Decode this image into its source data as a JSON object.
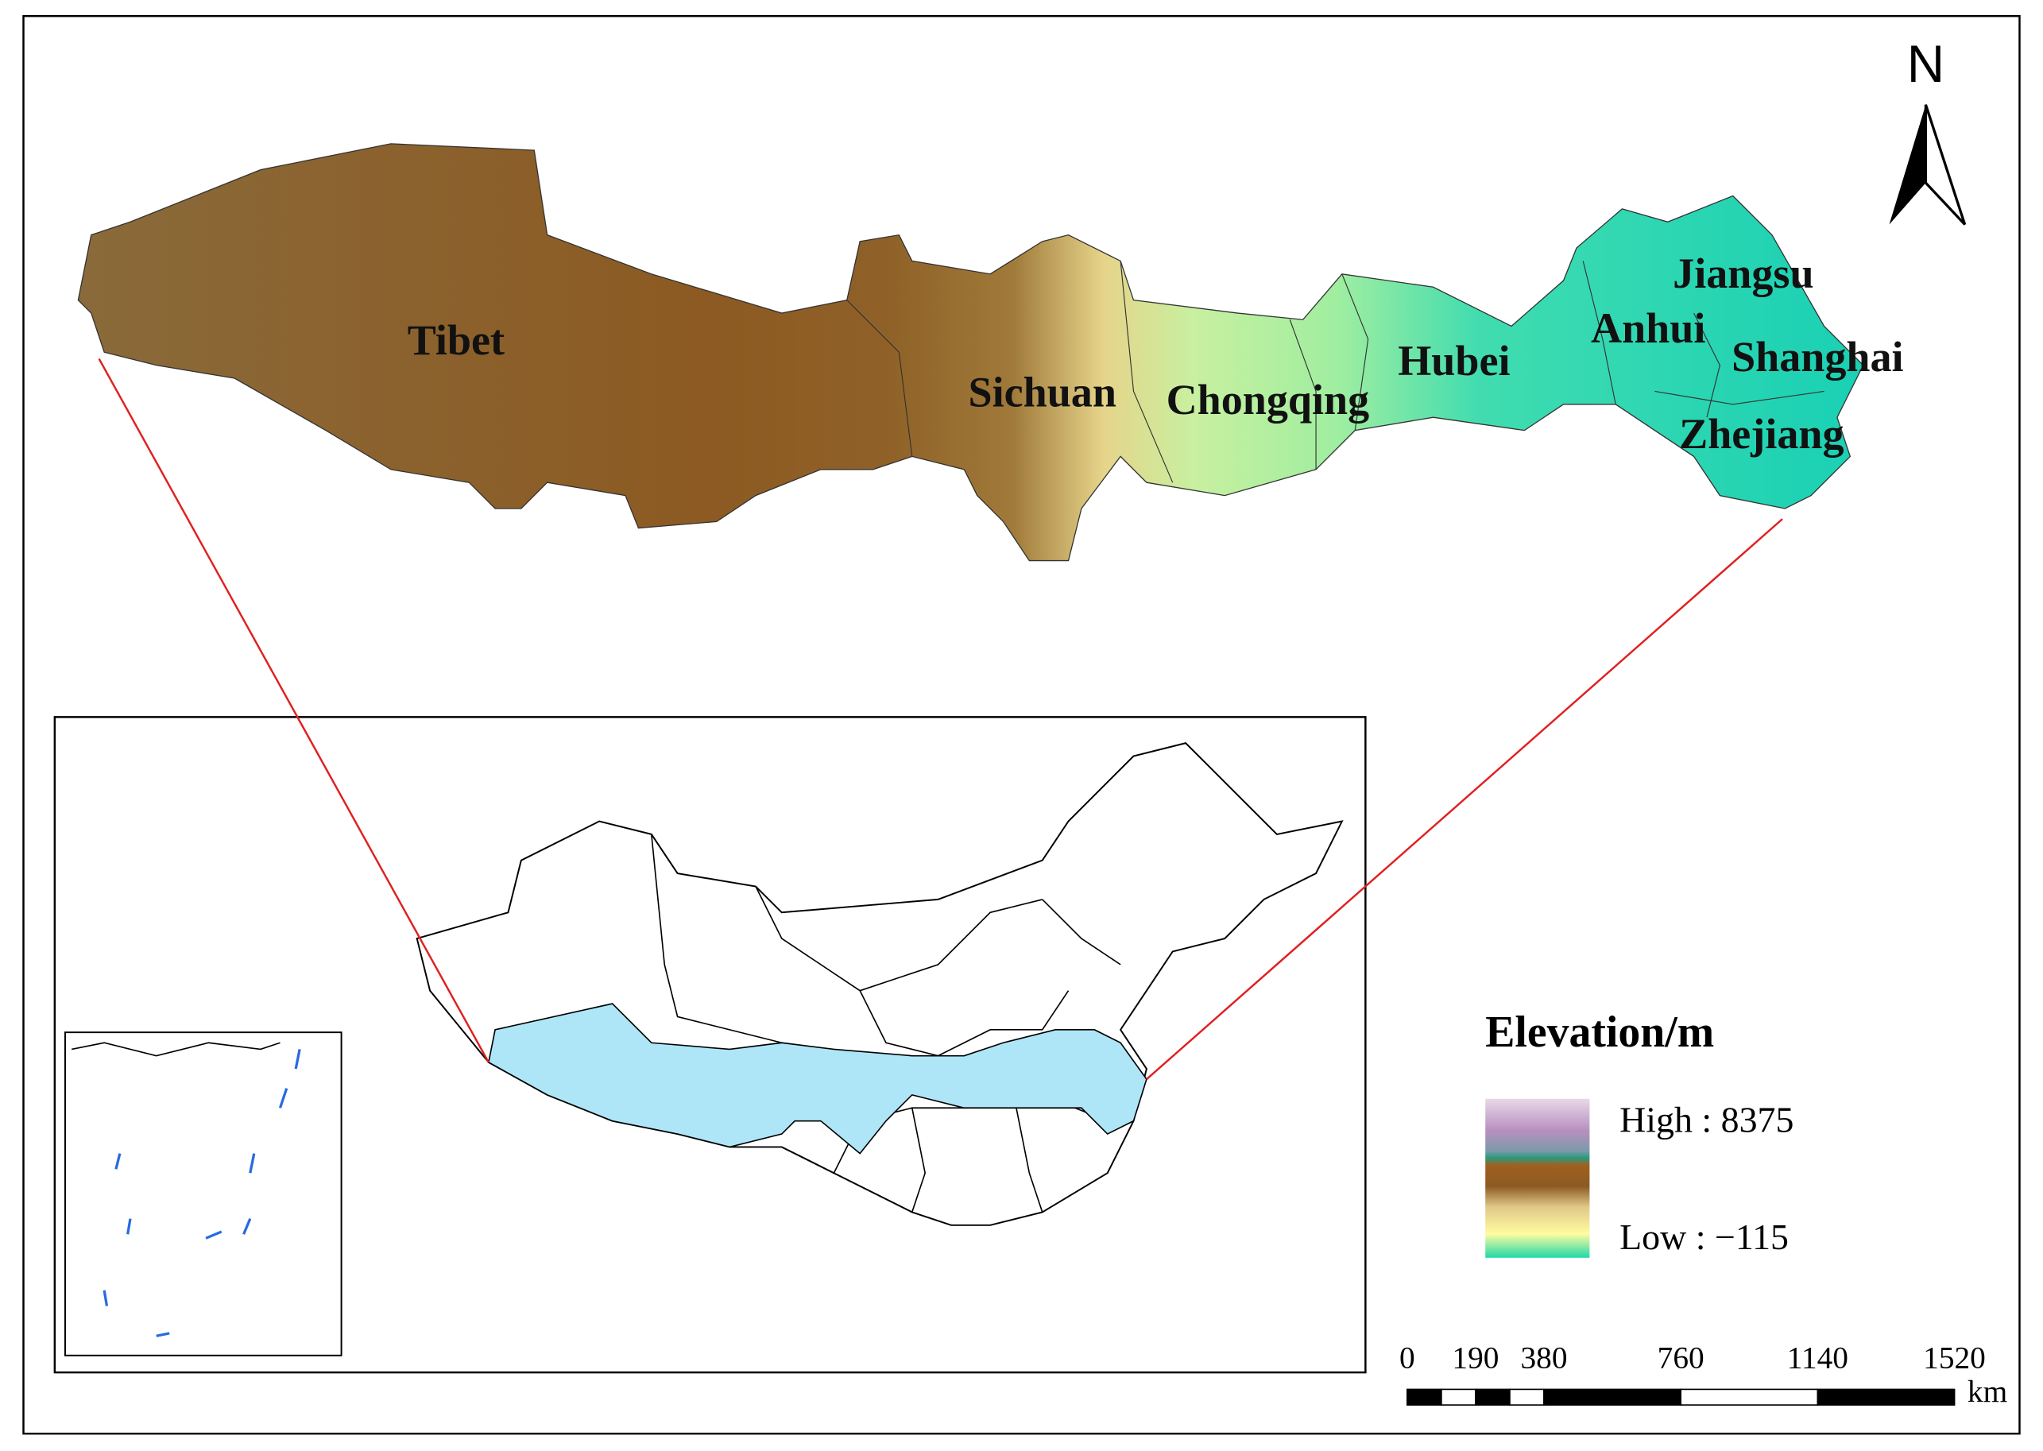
{
  "map": {
    "labels": [
      "Tibet",
      "Sichuan",
      "Chongqing",
      "Hubei",
      "Anhui",
      "Jiangsu",
      "Shanghai",
      "Zhejiang"
    ]
  },
  "north": "N",
  "legend": {
    "title": "Elevation/m",
    "high": "High : 8375",
    "low": "Low : −115"
  },
  "scale_bar": {
    "ticks": [
      0,
      190,
      380,
      760,
      1140,
      1520
    ],
    "unit": "km"
  }
}
